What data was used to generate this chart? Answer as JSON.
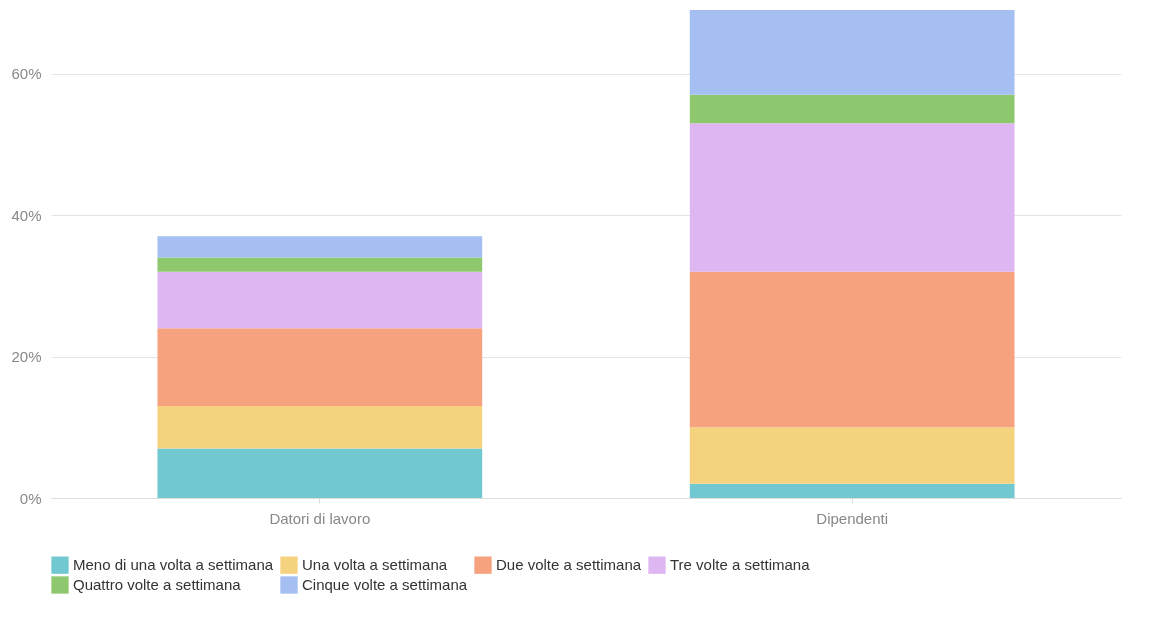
{
  "chart_data": {
    "type": "bar",
    "stacked": true,
    "categories": [
      "Datori di lavoro",
      "Dipendenti"
    ],
    "series": [
      {
        "name": "Meno di una volta a settimana",
        "color": "#72c8d0",
        "values": [
          7,
          2
        ]
      },
      {
        "name": "Una volta a settimana",
        "color": "#f5d27e",
        "values": [
          6,
          8
        ]
      },
      {
        "name": "Due volte a settimana",
        "color": "#f6a27f",
        "values": [
          11,
          22
        ]
      },
      {
        "name": "Tre volte a settimana",
        "color": "#ddb6f2",
        "values": [
          8,
          21
        ]
      },
      {
        "name": "Quattro volte a settimana",
        "color": "#8dc86e",
        "values": [
          2,
          4
        ]
      },
      {
        "name": "Cinque volte a settimana",
        "color": "#a5bff2",
        "values": [
          3,
          12
        ]
      }
    ],
    "yticks": [
      {
        "value": 0,
        "label": "0%"
      },
      {
        "value": 20,
        "label": "20%"
      },
      {
        "value": 40,
        "label": "40%"
      },
      {
        "value": 60,
        "label": "60%"
      }
    ],
    "ylim": [
      0,
      69
    ],
    "grid": "y",
    "legend": "bottom"
  }
}
